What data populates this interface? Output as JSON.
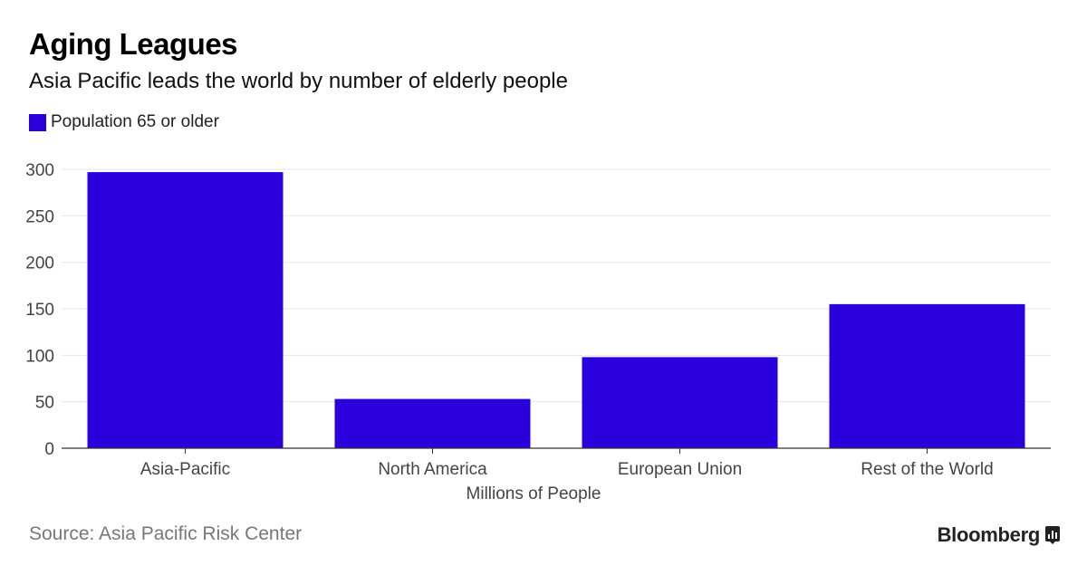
{
  "header": {
    "title": "Aging Leagues",
    "subtitle": "Asia Pacific leads the world by number of elderly people"
  },
  "legend": {
    "label": "Population 65 or older"
  },
  "footer": {
    "source": "Source: Asia Pacific Risk Center",
    "brand": "Bloomberg"
  },
  "colors": {
    "bar": "#2a00dd",
    "grid": "#e6e6e6",
    "axis": "#333333",
    "tick_text": "#444444"
  },
  "chart_data": {
    "type": "bar",
    "title": "Aging Leagues",
    "subtitle": "Asia Pacific leads the world by number of elderly people",
    "categories": [
      "Asia-Pacific",
      "North America",
      "European Union",
      "Rest of the World"
    ],
    "series": [
      {
        "name": "Population 65 or older",
        "values": [
          297,
          53,
          98,
          155
        ]
      }
    ],
    "xlabel": "Millions of People",
    "ylabel": "",
    "ylim": [
      0,
      300
    ],
    "yticks": [
      0,
      50,
      100,
      150,
      200,
      250,
      300
    ],
    "grid": true,
    "legend_position": "top-left"
  }
}
